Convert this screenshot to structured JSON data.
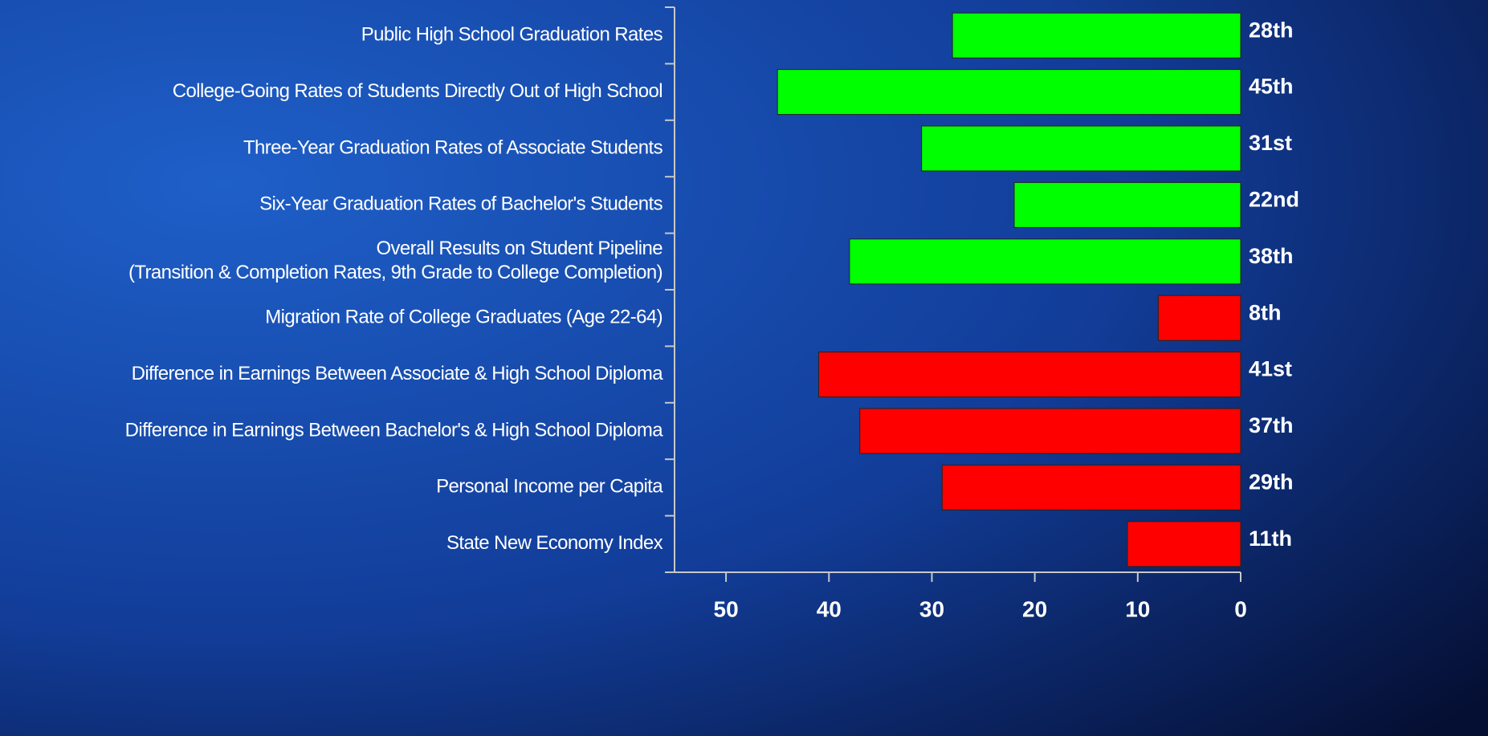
{
  "chart_data": {
    "type": "barh",
    "categories": [
      "Public High School Graduation Rates",
      "College-Going Rates of Students Directly Out of High School",
      "Three-Year Graduation Rates of Associate Students",
      "Six-Year Graduation Rates of Bachelor's Students",
      "Overall Results on Student Pipeline\n(Transition & Completion Rates, 9th Grade to College Completion)",
      "Migration Rate of College Graduates (Age 22-64)",
      "Difference in Earnings Between Associate & High School Diploma",
      "Difference in Earnings Between Bachelor's & High School Diploma",
      "Personal Income per Capita",
      "State New Economy Index"
    ],
    "values": [
      28,
      45,
      31,
      22,
      38,
      8,
      41,
      37,
      29,
      11
    ],
    "value_labels": [
      "28th",
      "45th",
      "31st",
      "22nd",
      "38th",
      "8th",
      "41st",
      "37th",
      "29th",
      "11th"
    ],
    "colors": [
      "#00ff00",
      "#00ff00",
      "#00ff00",
      "#00ff00",
      "#00ff00",
      "#ff0000",
      "#ff0000",
      "#ff0000",
      "#ff0000",
      "#ff0000"
    ],
    "xlim": [
      55,
      0
    ],
    "xticks": [
      50,
      40,
      30,
      20,
      10,
      0
    ]
  }
}
